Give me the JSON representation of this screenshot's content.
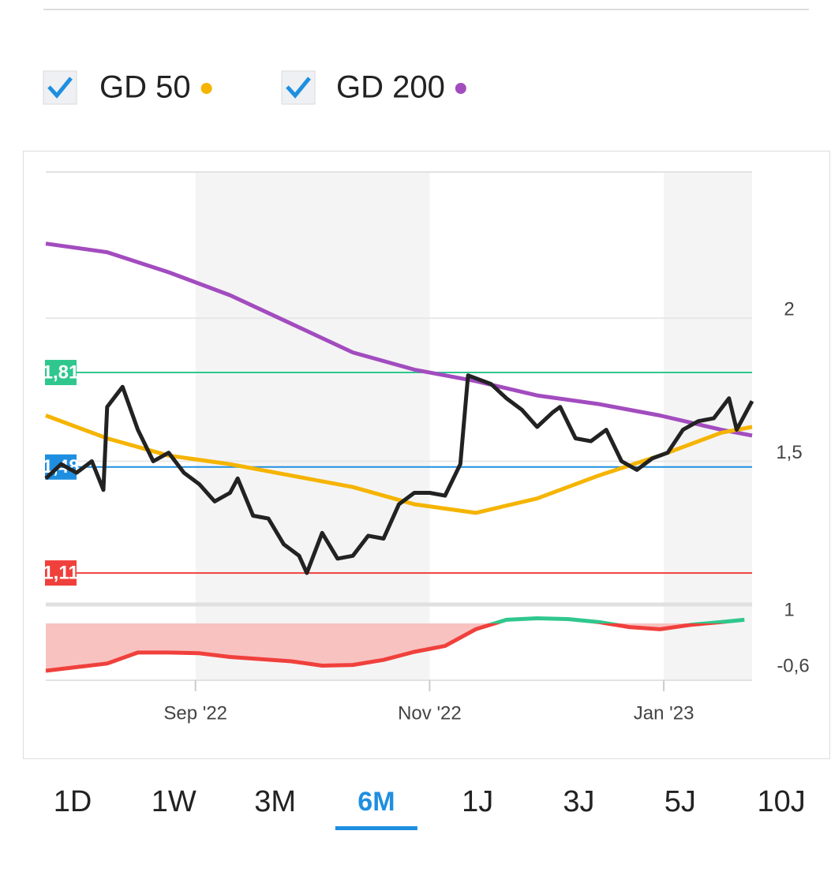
{
  "chart_data": [
    {
      "type": "line",
      "xlim": [
        0,
        184
      ],
      "ylim": [
        1,
        2.51
      ],
      "yticks": [
        1,
        {
          "value": 1.5,
          "label": "1,5"
        },
        2
      ],
      "grid": true,
      "series": [
        {
          "color": "#222222",
          "x": [
            0,
            4,
            8,
            12,
            15,
            16,
            20,
            24,
            28,
            32,
            36,
            40,
            44,
            48,
            50,
            54,
            58,
            62,
            66,
            68,
            72,
            76,
            80,
            84,
            88,
            92,
            96,
            100,
            104,
            108,
            110,
            112,
            116,
            120,
            124,
            128,
            132,
            134,
            138,
            142,
            146,
            150,
            154,
            158,
            162,
            166,
            170,
            174,
            178,
            180,
            184
          ],
          "values": [
            1.44,
            1.49,
            1.46,
            1.5,
            1.4,
            1.69,
            1.76,
            1.61,
            1.5,
            1.53,
            1.46,
            1.42,
            1.36,
            1.39,
            1.44,
            1.31,
            1.3,
            1.21,
            1.17,
            1.11,
            1.25,
            1.16,
            1.17,
            1.24,
            1.23,
            1.35,
            1.39,
            1.39,
            1.38,
            1.49,
            1.8,
            1.79,
            1.77,
            1.72,
            1.68,
            1.62,
            1.67,
            1.69,
            1.58,
            1.57,
            1.61,
            1.5,
            1.47,
            1.51,
            1.53,
            1.61,
            1.64,
            1.65,
            1.72,
            1.61,
            1.71
          ]
        },
        {
          "name": "GD 50",
          "color": "#f5b400",
          "x": [
            0,
            16,
            32,
            48,
            64,
            80,
            96,
            112,
            128,
            144,
            160,
            176,
            184
          ],
          "values": [
            1.66,
            1.58,
            1.52,
            1.49,
            1.45,
            1.41,
            1.35,
            1.32,
            1.37,
            1.45,
            1.52,
            1.6,
            1.62
          ]
        },
        {
          "name": "GD 200",
          "color": "#a24cbf",
          "x": [
            0,
            16,
            32,
            48,
            64,
            80,
            96,
            112,
            128,
            144,
            160,
            176,
            184
          ],
          "values": [
            2.26,
            2.23,
            2.16,
            2.08,
            1.98,
            1.88,
            1.82,
            1.78,
            1.73,
            1.7,
            1.66,
            1.61,
            1.59
          ]
        }
      ],
      "levels": [
        {
          "value": 1.81,
          "label": "1,81",
          "color": "#2fc78e"
        },
        {
          "value": 1.48,
          "label": "1,48",
          "color": "#1e8fe0"
        },
        {
          "value": 1.11,
          "label": "1,11",
          "color": "#f0403c"
        }
      ]
    },
    {
      "type": "oscillator",
      "xlim": [
        0,
        184
      ],
      "ylim": [
        -0.78,
        0.26
      ],
      "xticks": [
        {
          "value": 39,
          "label": "Sep '22"
        },
        {
          "value": 100,
          "label": "Nov '22"
        },
        {
          "value": 161,
          "label": "Jan '23"
        }
      ],
      "yticks": [
        {
          "value": -0.6,
          "label": "-0,6"
        }
      ],
      "x": [
        0,
        8,
        16,
        24,
        32,
        40,
        48,
        56,
        64,
        72,
        80,
        88,
        96,
        104,
        112,
        120,
        128,
        136,
        144,
        152,
        160,
        168,
        176,
        182
      ],
      "values": [
        -0.65,
        -0.6,
        -0.55,
        -0.4,
        -0.4,
        -0.41,
        -0.46,
        -0.49,
        -0.52,
        -0.58,
        -0.57,
        -0.5,
        -0.39,
        -0.31,
        -0.08,
        0.05,
        0.07,
        0.06,
        0.02,
        -0.05,
        -0.08,
        -0.02,
        0.02,
        0.05
      ],
      "positive_color": "#2fc78e",
      "negative_color": "#f0403c",
      "fill_color": "#f8c2c0"
    }
  ],
  "range_tabs": {
    "options": [
      "1D",
      "1W",
      "3M",
      "6M",
      "1J",
      "3J",
      "5J",
      "10J"
    ],
    "selected_index": 3,
    "selected_color": "#1e8fe0"
  }
}
